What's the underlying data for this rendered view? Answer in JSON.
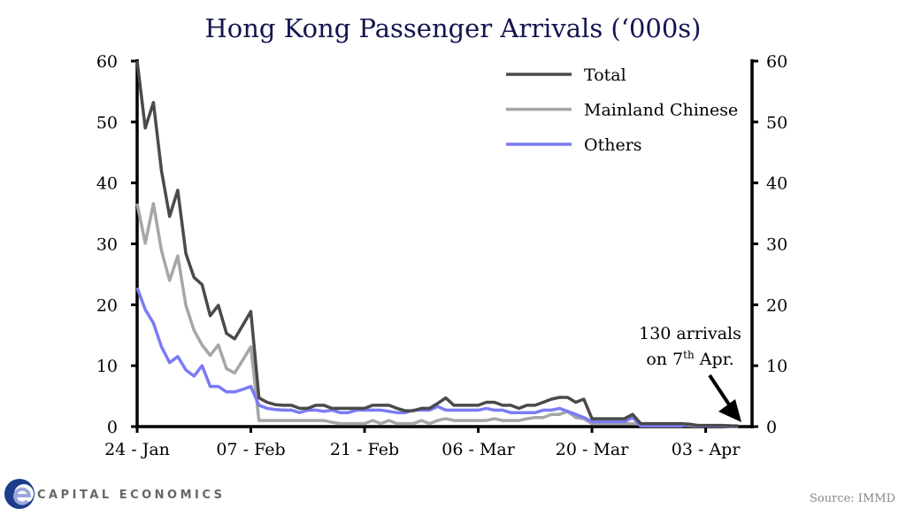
{
  "chart_data": {
    "type": "line",
    "title": "Hong Kong Passenger Arrivals (‘000s)",
    "x_start": "24 Jan",
    "x_tick_labels": [
      "24 - Jan",
      "07 - Feb",
      "21 - Feb",
      "06 - Mar",
      "20 - Mar",
      "03 - Apr"
    ],
    "ylim": [
      0,
      60
    ],
    "y_ticks": [
      0,
      10,
      20,
      30,
      40,
      50,
      60
    ],
    "y_axis_right": true,
    "grid": false,
    "legend_position": "top-right",
    "series": [
      {
        "name": "Total",
        "color": "#4a4a4a",
        "values": [
          60,
          49,
          53.2,
          42,
          34.5,
          38.8,
          28.4,
          24.5,
          23.3,
          18.2,
          19.9,
          15.3,
          14.4,
          16.6,
          18.9,
          4.7,
          4.0,
          3.6,
          3.5,
          3.5,
          3.0,
          3.0,
          3.5,
          3.5,
          3.0,
          3.0,
          3.0,
          3.0,
          3.0,
          3.5,
          3.5,
          3.5,
          3.0,
          2.6,
          2.6,
          3.0,
          3.0,
          3.8,
          4.7,
          3.5,
          3.5,
          3.5,
          3.5,
          4.0,
          4.0,
          3.5,
          3.5,
          3.0,
          3.5,
          3.5,
          4.0,
          4.5,
          4.8,
          4.8,
          4.0,
          4.5,
          1.3,
          1.3,
          1.3,
          1.3,
          1.3,
          2.0,
          0.5,
          0.5,
          0.5,
          0.5,
          0.5,
          0.5,
          0.4,
          0.2,
          0.2,
          0.2,
          0.2,
          0.15,
          0.13
        ]
      },
      {
        "name": "Mainland Chinese",
        "color": "#a6a6a6",
        "values": [
          36.6,
          30.1,
          36.6,
          28.9,
          24,
          28,
          19.9,
          15.8,
          13.4,
          11.7,
          13.4,
          9.5,
          8.8,
          10.9,
          13.1,
          1.0,
          1.0,
          1.0,
          1.0,
          1.0,
          1.0,
          1.0,
          1.0,
          1.0,
          0.7,
          0.5,
          0.5,
          0.5,
          0.5,
          1.0,
          0.5,
          1.0,
          0.5,
          0.5,
          0.5,
          1.0,
          0.5,
          1.0,
          1.3,
          1.0,
          1.0,
          1.0,
          1.0,
          1.0,
          1.3,
          1.0,
          1.0,
          1.0,
          1.3,
          1.5,
          1.5,
          2.0,
          2.0,
          2.5,
          1.5,
          1.3,
          0.5,
          0.5,
          0.5,
          0.5,
          0.5,
          0.5,
          0.4,
          0.3,
          0.3,
          0.3,
          0.2,
          0.2,
          0.2,
          0.1,
          0.1,
          0.1,
          0.1,
          0.05,
          0.03
        ]
      },
      {
        "name": "Others",
        "color": "#7b7bf5",
        "values": [
          22.8,
          19.2,
          17,
          13.1,
          10.5,
          11.5,
          9.3,
          8.3,
          10,
          6.6,
          6.6,
          5.7,
          5.7,
          6.1,
          6.6,
          3.5,
          3.0,
          2.8,
          2.7,
          2.7,
          2.3,
          2.7,
          2.7,
          2.5,
          2.7,
          2.3,
          2.3,
          2.7,
          2.7,
          2.7,
          2.7,
          2.5,
          2.3,
          2.3,
          2.7,
          2.7,
          2.7,
          3.3,
          2.7,
          2.7,
          2.7,
          2.7,
          2.7,
          3.0,
          2.7,
          2.7,
          2.3,
          2.3,
          2.3,
          2.3,
          2.7,
          2.7,
          3.0,
          2.5,
          2.0,
          1.5,
          0.8,
          0.8,
          0.8,
          0.8,
          0.8,
          1.5,
          0.1,
          0.1,
          0.1,
          0.1,
          0.1,
          0.1,
          0.4,
          0.1,
          0.1,
          0.1,
          0.1,
          0.1,
          0.1
        ]
      }
    ],
    "annotation": {
      "line1": "130 arrivals",
      "line2_pre": "on 7",
      "line2_sup": "th",
      "line2_post": " Apr."
    }
  },
  "footer": {
    "brand": "CAPITAL ECONOMICS",
    "source": "Source: IMMD"
  }
}
